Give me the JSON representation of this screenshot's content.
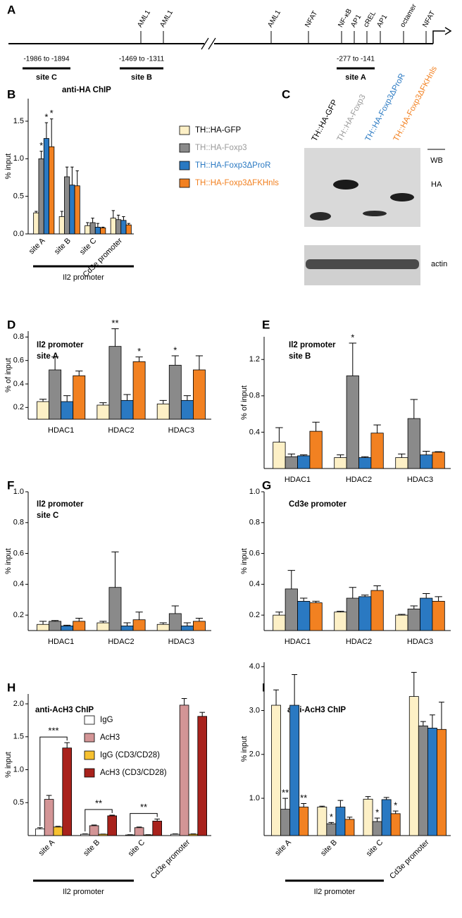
{
  "diagram": {
    "panel": "A",
    "elements": [
      "AML1",
      "AML1",
      "AML1",
      "NFAT",
      "NF-κB",
      "AP1",
      "cREL",
      "AP1",
      "octamer",
      "NFAT"
    ],
    "regions": [
      {
        "range": "-1986 to -1894",
        "name": "site C"
      },
      {
        "range": "-1469 to -1311",
        "name": "site B"
      },
      {
        "range": "-277 to -141",
        "name": "site A"
      }
    ]
  },
  "blot": {
    "panel": "C",
    "header": "WB",
    "rows": [
      "HA",
      "actin"
    ]
  },
  "chart_data": [
    {
      "type": "bar",
      "panel": "B",
      "title": "anti-HA ChIP",
      "y_label": "% input",
      "categories": [
        "site A",
        "site B",
        "site C",
        "Cd3e promoter"
      ],
      "group_label": "Il2 promoter",
      "ylim": [
        0,
        1.8
      ],
      "yticks": [
        {
          "value": 0,
          "label": "0.0"
        },
        0.5,
        {
          "value": 1,
          "label": "1.0"
        },
        1.5
      ],
      "legend": true,
      "series": [
        {
          "name": "TH::HA-GFP",
          "color": "#fdf0c6",
          "text_color": "#000000",
          "values": [
            0.28,
            0.23,
            0.11,
            0.21
          ],
          "errors": [
            0.02,
            0.07,
            0.04,
            0.1
          ],
          "significance": [
            null,
            null,
            null,
            null
          ]
        },
        {
          "name": "TH::HA-Foxp3",
          "color": "#8a8a8a",
          "text_color": "#9a9a9a",
          "values": [
            1.0,
            0.76,
            0.15,
            0.19
          ],
          "errors": [
            0.1,
            0.13,
            0.06,
            0.06
          ],
          "significance": [
            "*",
            null,
            null,
            null
          ]
        },
        {
          "name": "TH::HA-Foxp3ΔProR",
          "color": "#2a79c2",
          "text_color": "#2a79c2",
          "values": [
            1.27,
            0.65,
            0.09,
            0.18
          ],
          "errors": [
            0.21,
            0.24,
            0.05,
            0.05
          ],
          "significance": [
            "*",
            null,
            null,
            null
          ]
        },
        {
          "name": "TH::HA-Foxp3ΔFKHnls",
          "color": "#f28121",
          "text_color": "#f28121",
          "values": [
            1.16,
            0.64,
            0.08,
            0.12
          ],
          "errors": [
            0.37,
            0.2,
            0.01,
            0.02
          ],
          "significance": [
            "*",
            null,
            null,
            null
          ]
        }
      ]
    },
    {
      "type": "bar",
      "panel": "D",
      "title": "Il2 promoter",
      "subtitle": "site A",
      "y_label": "% of input",
      "categories": [
        "HDAC1",
        "HDAC2",
        "HDAC3"
      ],
      "ylim": [
        0.1,
        0.85
      ],
      "yticks": [
        0.2,
        0.4,
        0.6,
        0.8
      ],
      "series": [
        {
          "color": "#fdf0c6",
          "values": [
            0.25,
            0.22,
            0.23
          ],
          "errors": [
            0.02,
            0.02,
            0.03
          ],
          "significance": [
            null,
            null,
            null
          ]
        },
        {
          "color": "#8a8a8a",
          "values": [
            0.52,
            0.72,
            0.56
          ],
          "errors": [
            0.11,
            0.15,
            0.08
          ],
          "significance": [
            null,
            "**",
            "*"
          ]
        },
        {
          "color": "#2a79c2",
          "values": [
            0.25,
            0.26,
            0.26
          ],
          "errors": [
            0.05,
            0.05,
            0.04
          ],
          "significance": [
            null,
            null,
            null
          ]
        },
        {
          "color": "#f28121",
          "values": [
            0.47,
            0.59,
            0.52
          ],
          "errors": [
            0.04,
            0.04,
            0.12
          ],
          "significance": [
            null,
            "*",
            null
          ]
        }
      ]
    },
    {
      "type": "bar",
      "panel": "E",
      "title": "Il2 promoter",
      "subtitle": "site B",
      "y_label": "% of input",
      "categories": [
        "HDAC1",
        "HDAC2",
        "HDAC3"
      ],
      "ylim": [
        0,
        1.45
      ],
      "yticks": [
        0.4,
        0.8,
        1.2
      ],
      "series": [
        {
          "color": "#fdf0c6",
          "values": [
            0.29,
            0.12,
            0.12
          ],
          "errors": [
            0.16,
            0.03,
            0.04
          ],
          "significance": [
            null,
            null,
            null
          ]
        },
        {
          "color": "#8a8a8a",
          "values": [
            0.13,
            1.02,
            0.55
          ],
          "errors": [
            0.03,
            0.36,
            0.21
          ],
          "significance": [
            null,
            "*",
            null
          ]
        },
        {
          "color": "#2a79c2",
          "values": [
            0.14,
            0.12,
            0.15
          ],
          "errors": [
            0.01,
            0.01,
            0.04
          ],
          "significance": [
            null,
            null,
            null
          ]
        },
        {
          "color": "#f28121",
          "values": [
            0.41,
            0.39,
            0.18
          ],
          "errors": [
            0.1,
            0.09,
            0.005
          ],
          "significance": [
            null,
            null,
            null
          ]
        }
      ]
    },
    {
      "type": "bar",
      "panel": "F",
      "title": "Il2 promoter",
      "subtitle": "site C",
      "y_label": "% input",
      "categories": [
        "HDAC1",
        "HDAC2",
        "HDAC3"
      ],
      "ylim": [
        0.1,
        1.0
      ],
      "yticks": [
        0.2,
        0.4,
        0.6,
        0.8,
        {
          "value": 1,
          "label": "1.0"
        }
      ],
      "series": [
        {
          "color": "#fdf0c6",
          "values": [
            0.14,
            0.15,
            0.14
          ],
          "errors": [
            0.02,
            0.01,
            0.01
          ],
          "significance": [
            null,
            null,
            null
          ]
        },
        {
          "color": "#8a8a8a",
          "values": [
            0.16,
            0.38,
            0.21
          ],
          "errors": [
            0.005,
            0.23,
            0.05
          ],
          "significance": [
            null,
            null,
            null
          ]
        },
        {
          "color": "#2a79c2",
          "values": [
            0.13,
            0.13,
            0.13
          ],
          "errors": [
            0.005,
            0.02,
            0.02
          ],
          "significance": [
            null,
            null,
            null
          ]
        },
        {
          "color": "#f28121",
          "values": [
            0.16,
            0.17,
            0.16
          ],
          "errors": [
            0.02,
            0.05,
            0.02
          ],
          "significance": [
            null,
            null,
            null
          ]
        }
      ]
    },
    {
      "type": "bar",
      "panel": "G",
      "title": "Cd3e promoter",
      "y_label": "% input",
      "categories": [
        "HDAC1",
        "HDAC2",
        "HDAC3"
      ],
      "ylim": [
        0.1,
        1.0
      ],
      "yticks": [
        0.2,
        0.4,
        0.6,
        0.8,
        {
          "value": 1,
          "label": "1.0"
        }
      ],
      "series": [
        {
          "color": "#fdf0c6",
          "values": [
            0.2,
            0.22,
            0.2
          ],
          "errors": [
            0.02,
            0.005,
            0.005
          ],
          "significance": [
            null,
            null,
            null
          ]
        },
        {
          "color": "#8a8a8a",
          "values": [
            0.37,
            0.31,
            0.24
          ],
          "errors": [
            0.12,
            0.07,
            0.02
          ],
          "significance": [
            null,
            null,
            null
          ]
        },
        {
          "color": "#2a79c2",
          "values": [
            0.29,
            0.32,
            0.31
          ],
          "errors": [
            0.02,
            0.01,
            0.03
          ],
          "significance": [
            null,
            null,
            null
          ]
        },
        {
          "color": "#f28121",
          "values": [
            0.28,
            0.36,
            0.29
          ],
          "errors": [
            0.01,
            0.03,
            0.03
          ],
          "significance": [
            null,
            null,
            null
          ]
        }
      ]
    },
    {
      "type": "bar",
      "panel": "H",
      "title": "anti-AcH3 ChIP",
      "y_label": "% input",
      "categories": [
        "site A",
        "site B",
        "site C",
        "Cd3e promoter"
      ],
      "group_label": "Il2 promoter",
      "ylim": [
        0,
        2.15
      ],
      "yticks": [
        0.5,
        {
          "value": 1,
          "label": "1.0"
        },
        1.5,
        {
          "value": 2,
          "label": "2.0"
        }
      ],
      "legend": true,
      "comparisons": [
        "***",
        "**",
        "**",
        null
      ],
      "series": [
        {
          "name": "IgG",
          "color": "#ffffff",
          "values": [
            0.1,
            0.02,
            0.01,
            0.02
          ],
          "errors": [
            0.02,
            0.005,
            0.003,
            0.005
          ]
        },
        {
          "name": "AcH3",
          "color": "#d39596",
          "values": [
            0.55,
            0.15,
            0.12,
            1.98
          ],
          "errors": [
            0.06,
            0.01,
            0.01,
            0.1
          ]
        },
        {
          "name": "IgG (CD3/CD28)",
          "color": "#f7c130",
          "values": [
            0.13,
            0.02,
            0.01,
            0.02
          ],
          "errors": [
            0.01,
            0.003,
            0.003,
            0.005
          ]
        },
        {
          "name": "AcH3 (CD3/CD28)",
          "color": "#a8221c",
          "values": [
            1.33,
            0.3,
            0.22,
            1.81
          ],
          "errors": [
            0.08,
            0.01,
            0.03,
            0.06
          ]
        }
      ]
    },
    {
      "type": "bar",
      "panel": "I",
      "title": "anti-AcH3 ChIP",
      "y_label": "% input",
      "categories": [
        "site A",
        "site B",
        "site C",
        "Cd3e promoter"
      ],
      "group_label": "Il2 promoter",
      "ylim": [
        0.15,
        4.1
      ],
      "yticks": [
        {
          "value": 1,
          "label": "1.0"
        },
        {
          "value": 2,
          "label": "2.0"
        },
        {
          "value": 3,
          "label": "3.0"
        },
        {
          "value": 4,
          "label": "4.0"
        }
      ],
      "series": [
        {
          "color": "#fdf0c6",
          "values": [
            3.12,
            0.8,
            0.98,
            3.32
          ],
          "errors": [
            0.35,
            0.02,
            0.06,
            0.55
          ],
          "significance": [
            null,
            null,
            null,
            null
          ]
        },
        {
          "color": "#8a8a8a",
          "values": [
            0.75,
            0.42,
            0.47,
            2.65
          ],
          "errors": [
            0.25,
            0.03,
            0.08,
            0.1
          ],
          "significance": [
            "**",
            "*",
            "*",
            null
          ]
        },
        {
          "color": "#2a79c2",
          "values": [
            3.12,
            0.8,
            0.97,
            2.6
          ],
          "errors": [
            0.7,
            0.15,
            0.05,
            0.3
          ],
          "significance": [
            null,
            null,
            null,
            null
          ]
        },
        {
          "color": "#f28121",
          "values": [
            0.8,
            0.52,
            0.65,
            2.57
          ],
          "errors": [
            0.08,
            0.05,
            0.06,
            0.62
          ],
          "significance": [
            "**",
            null,
            "*",
            null
          ]
        }
      ]
    }
  ]
}
